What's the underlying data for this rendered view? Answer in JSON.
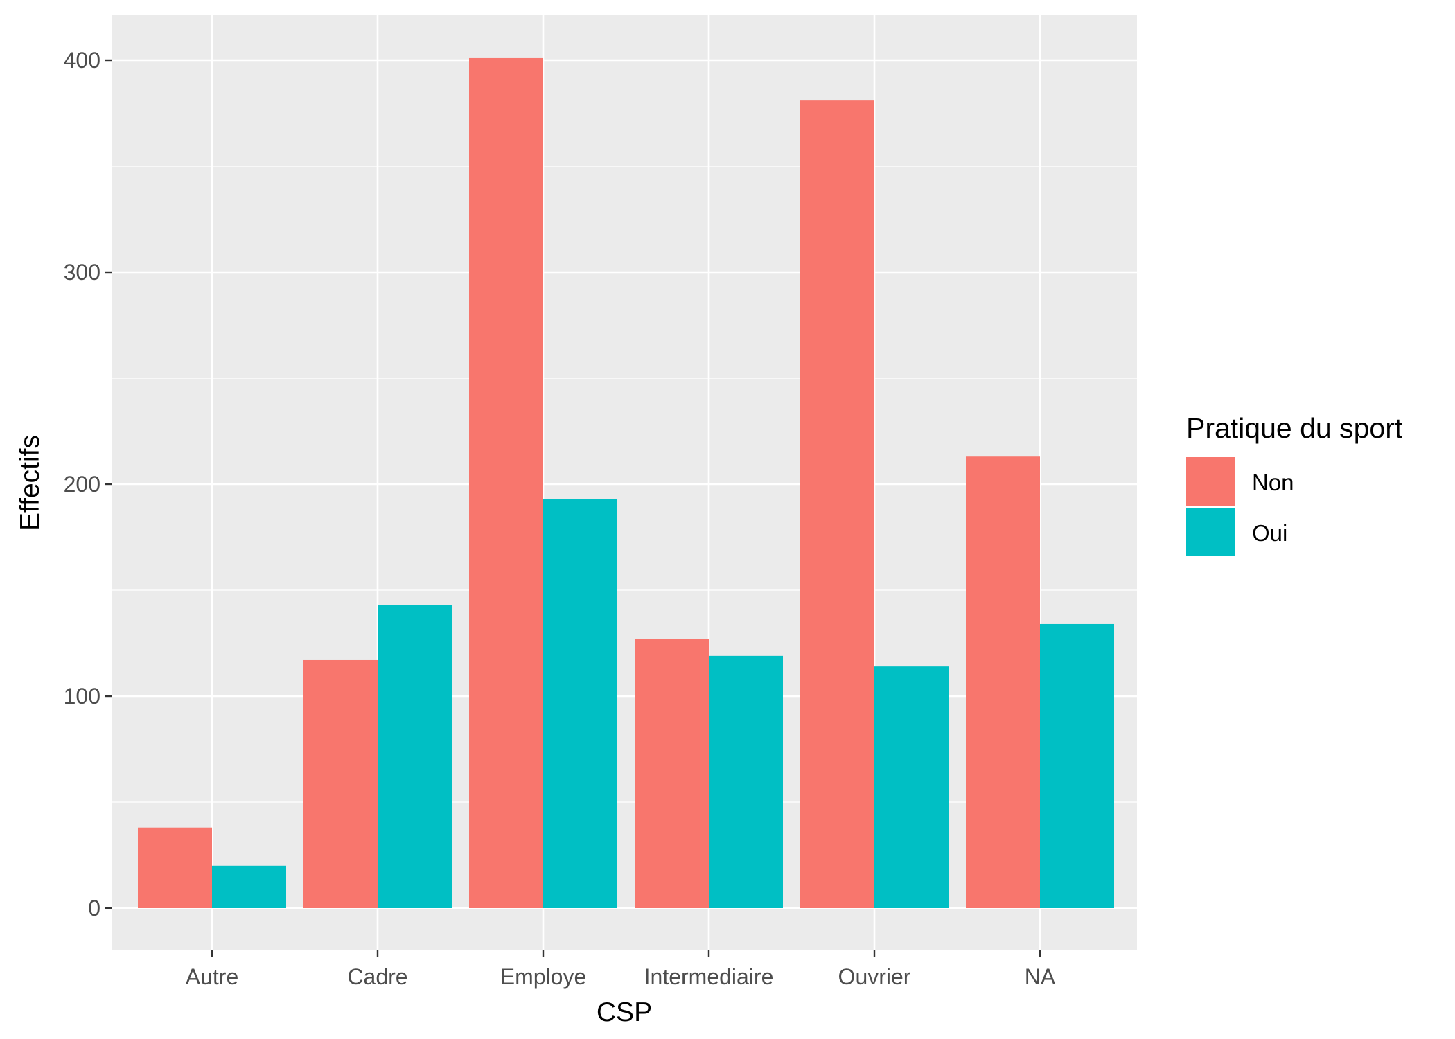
{
  "chart_data": {
    "type": "bar",
    "title": "",
    "xlabel": "CSP",
    "ylabel": "Effectifs",
    "categories": [
      "Autre",
      "Cadre",
      "Employe",
      "Intermediaire",
      "Ouvrier",
      "NA"
    ],
    "series": [
      {
        "name": "Non",
        "color": "#F8766D",
        "values": [
          38,
          117,
          401,
          127,
          381,
          213
        ]
      },
      {
        "name": "Oui",
        "color": "#00BFC4",
        "values": [
          20,
          143,
          193,
          119,
          114,
          134
        ]
      }
    ],
    "ylim": [
      -20,
      420
    ],
    "yticks": [
      0,
      100,
      200,
      300,
      400
    ],
    "yticks_minor": [
      50,
      150,
      250,
      350
    ],
    "grid": true,
    "legend": {
      "title": "Pratique du sport",
      "position": "right",
      "items": [
        "Non",
        "Oui"
      ]
    },
    "colors": {
      "panel_background": "#EBEBEB",
      "grid": "#FFFFFF"
    }
  }
}
